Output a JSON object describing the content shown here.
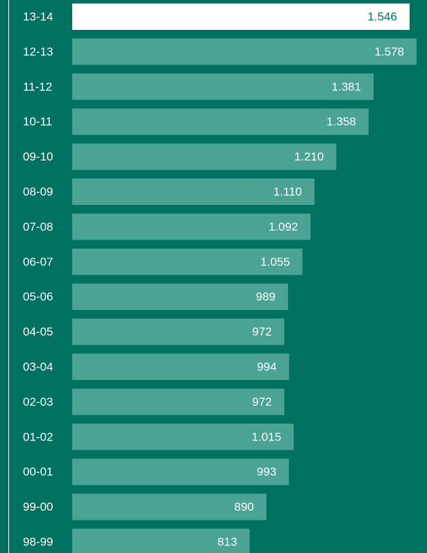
{
  "chart_data": {
    "type": "bar",
    "orientation": "horizontal",
    "categories": [
      "13-14",
      "12-13",
      "11-12",
      "10-11",
      "09-10",
      "08-09",
      "07-08",
      "06-07",
      "05-06",
      "04-05",
      "03-04",
      "02-03",
      "01-02",
      "00-01",
      "99-00",
      "98-99"
    ],
    "values": [
      1546,
      1578,
      1381,
      1358,
      1210,
      1110,
      1092,
      1055,
      989,
      972,
      994,
      972,
      1015,
      993,
      890,
      813
    ],
    "value_labels": [
      "1.546",
      "1.578",
      "1.381",
      "1.358",
      "1.210",
      "1.110",
      "1.092",
      "1.055",
      "989",
      "972",
      "994",
      "972",
      "1.015",
      "993",
      "890",
      "813"
    ],
    "colors": [
      "#ffffff",
      "#4ba393",
      "#4ba393",
      "#4ba393",
      "#4ba393",
      "#4ba393",
      "#4ba393",
      "#4ba393",
      "#4ba393",
      "#4ba393",
      "#4ba393",
      "#4ba393",
      "#4ba393",
      "#4ba393",
      "#4ba393",
      "#4ba393"
    ],
    "label_colors": [
      "#00725f",
      "#ffffff",
      "#ffffff",
      "#ffffff",
      "#ffffff",
      "#ffffff",
      "#ffffff",
      "#ffffff",
      "#ffffff",
      "#ffffff",
      "#ffffff",
      "#ffffff",
      "#ffffff",
      "#ffffff",
      "#ffffff",
      "#ffffff"
    ],
    "background": "#00725f"
  }
}
